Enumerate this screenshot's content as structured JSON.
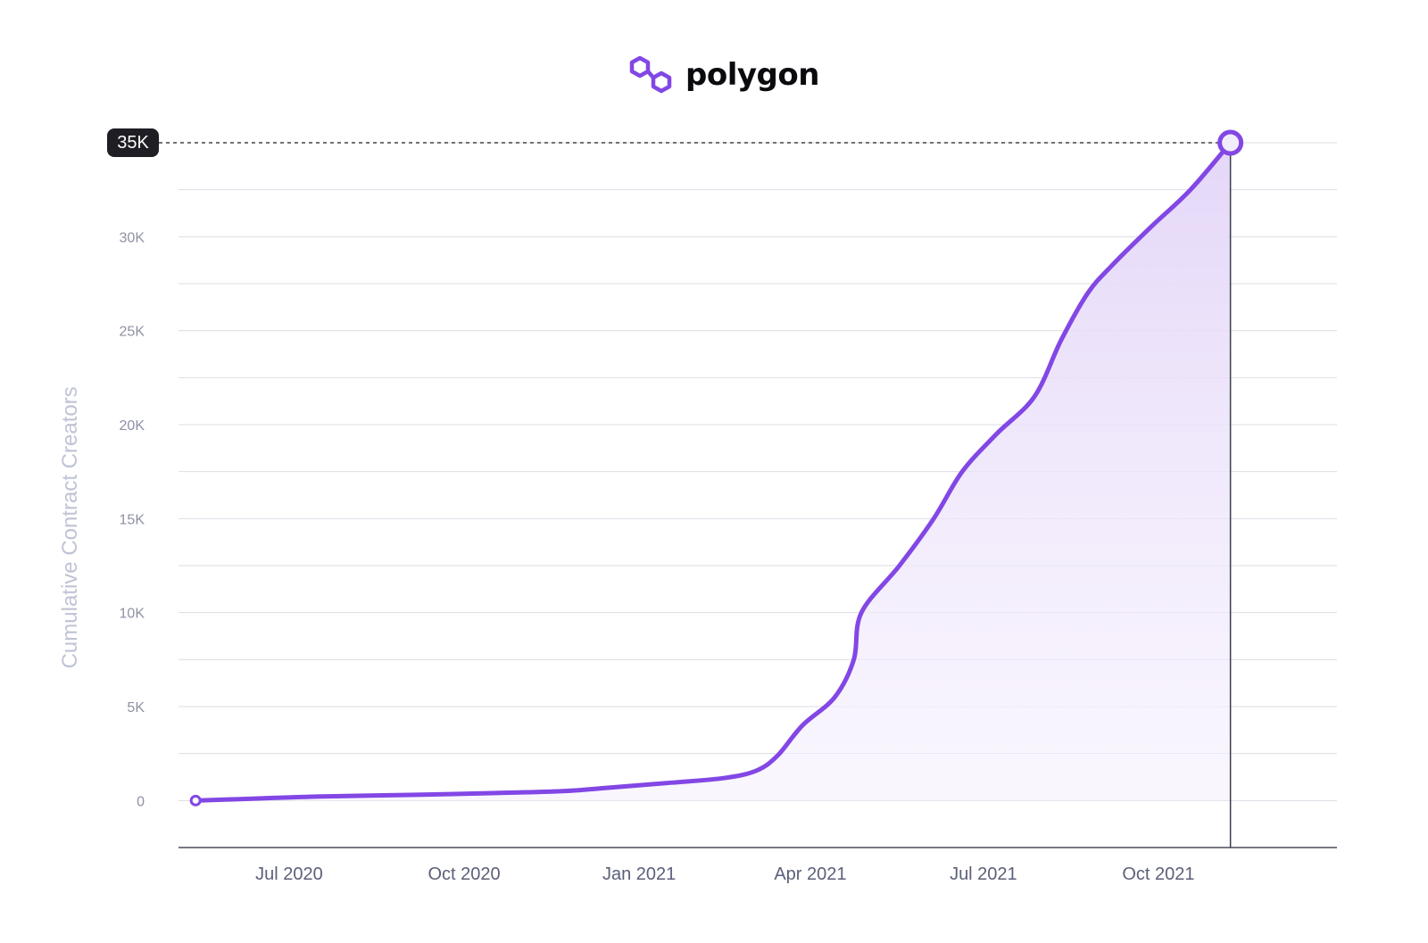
{
  "brand": {
    "name": "polygon",
    "logo_icon": "polygon-logo-icon",
    "color": "#8247e5"
  },
  "colors": {
    "line": "#8247e5",
    "area": "#e8ddf9",
    "grid": "#d9dbe3",
    "badge_bg": "#1e1e24"
  },
  "chart_data": {
    "type": "area",
    "title": "",
    "xlabel": "",
    "ylabel": "Cumulative Contract Creators",
    "xlim": [
      "2020-06-01",
      "2022-01-31"
    ],
    "ylim": [
      -2500,
      35000
    ],
    "yticks": [
      {
        "value": 0,
        "label": "0"
      },
      {
        "value": 5000,
        "label": "5K"
      },
      {
        "value": 10000,
        "label": "10K"
      },
      {
        "value": 15000,
        "label": "15K"
      },
      {
        "value": 20000,
        "label": "20K"
      },
      {
        "value": 25000,
        "label": "25K"
      },
      {
        "value": 30000,
        "label": "30K"
      }
    ],
    "xticks": [
      {
        "date": "2020-07-01",
        "label": "Jul 2020"
      },
      {
        "date": "2020-10-01",
        "label": "Oct 2020"
      },
      {
        "date": "2021-01-01",
        "label": "Jan 2021"
      },
      {
        "date": "2021-04-01",
        "label": "Apr 2021"
      },
      {
        "date": "2021-07-01",
        "label": "Jul 2021"
      },
      {
        "date": "2021-10-01",
        "label": "Oct 2021"
      }
    ],
    "grid": true,
    "highlight": {
      "value": 35000,
      "label": "35K",
      "date": "2021-12-06"
    },
    "series": [
      {
        "values": [
          {
            "x": "2020-06-10",
            "y": 0
          },
          {
            "x": "2020-07-10",
            "y": 100
          },
          {
            "x": "2020-08-15",
            "y": 220
          },
          {
            "x": "2020-10-01",
            "y": 300
          },
          {
            "x": "2020-11-15",
            "y": 400
          },
          {
            "x": "2020-12-20",
            "y": 500
          },
          {
            "x": "2021-01-15",
            "y": 700
          },
          {
            "x": "2021-02-15",
            "y": 950
          },
          {
            "x": "2021-03-15",
            "y": 1200
          },
          {
            "x": "2021-04-01",
            "y": 1600
          },
          {
            "x": "2021-04-12",
            "y": 2400
          },
          {
            "x": "2021-04-25",
            "y": 4000
          },
          {
            "x": "2021-05-12",
            "y": 5500
          },
          {
            "x": "2021-05-22",
            "y": 7500
          },
          {
            "x": "2021-05-26",
            "y": 10000
          },
          {
            "x": "2021-06-15",
            "y": 12500
          },
          {
            "x": "2021-07-03",
            "y": 15000
          },
          {
            "x": "2021-07-18",
            "y": 17500
          },
          {
            "x": "2021-08-05",
            "y": 19500
          },
          {
            "x": "2021-08-25",
            "y": 21500
          },
          {
            "x": "2021-09-08",
            "y": 24500
          },
          {
            "x": "2021-09-22",
            "y": 27000
          },
          {
            "x": "2021-10-05",
            "y": 28500
          },
          {
            "x": "2021-10-25",
            "y": 30500
          },
          {
            "x": "2021-11-15",
            "y": 32500
          },
          {
            "x": "2021-12-06",
            "y": 35000
          }
        ]
      }
    ]
  }
}
